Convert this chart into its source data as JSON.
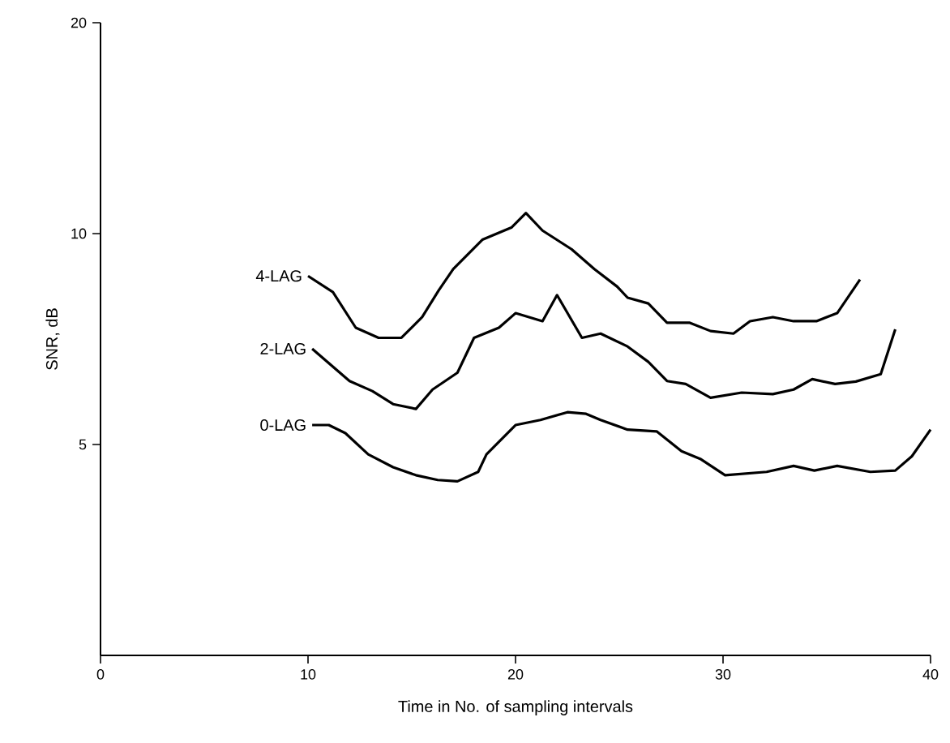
{
  "chart_data": {
    "type": "line",
    "xlabel": "Time in No. of sampling intervals",
    "ylabel": "SNR, dB",
    "log": "y",
    "xlim": [
      0,
      40
    ],
    "ylim": [
      2.5,
      20
    ],
    "xticks": [
      0,
      10,
      20,
      30,
      40
    ],
    "yticks": [
      5,
      10,
      20
    ],
    "grid": false,
    "legend": false,
    "marker": "none",
    "line_style": "solid",
    "series": [
      {
        "name": "4-LAG",
        "color": "#000000",
        "x": [
          10,
          11.2,
          12.3,
          13.4,
          14.5,
          15.5,
          16.3,
          17.0,
          18.4,
          19.8,
          20.5,
          21.3,
          22.7,
          23.8,
          24.9,
          25.4,
          26.4,
          27.3,
          28.4,
          29.4,
          30.5,
          31.3,
          32.4,
          33.4,
          34.5,
          35.5,
          36.6
        ],
        "values": [
          8.7,
          8.25,
          7.34,
          7.1,
          7.1,
          7.6,
          8.3,
          8.9,
          9.8,
          10.2,
          10.7,
          10.1,
          9.5,
          8.9,
          8.4,
          8.1,
          7.95,
          7.46,
          7.46,
          7.26,
          7.2,
          7.5,
          7.6,
          7.5,
          7.5,
          7.7,
          8.6
        ]
      },
      {
        "name": "2-LAG",
        "color": "#000000",
        "x": [
          10.2,
          12.0,
          13.1,
          14.1,
          15.2,
          16.0,
          17.2,
          18.0,
          19.2,
          20.0,
          21.3,
          22.0,
          23.2,
          24.1,
          25.4,
          26.4,
          27.3,
          28.2,
          29.4,
          30.9,
          32.4,
          33.4,
          34.3,
          35.4,
          36.4,
          37.6,
          38.3
        ],
        "values": [
          6.85,
          6.16,
          5.96,
          5.71,
          5.62,
          5.99,
          6.33,
          7.1,
          7.34,
          7.7,
          7.5,
          8.17,
          7.1,
          7.2,
          6.9,
          6.56,
          6.16,
          6.1,
          5.83,
          5.93,
          5.9,
          5.99,
          6.2,
          6.1,
          6.15,
          6.3,
          7.3
        ]
      },
      {
        "name": "0-LAG",
        "color": "#000000",
        "x": [
          10.2,
          11.0,
          11.8,
          12.9,
          14.1,
          15.2,
          16.25,
          17.2,
          18.2,
          18.6,
          20.0,
          21.2,
          22.5,
          23.4,
          24.1,
          25.4,
          26.8,
          28.0,
          28.9,
          30.1,
          32.1,
          33.4,
          34.4,
          35.5,
          37.1,
          38.3,
          39.1,
          40.0
        ],
        "values": [
          5.33,
          5.33,
          5.19,
          4.84,
          4.64,
          4.52,
          4.45,
          4.43,
          4.57,
          4.84,
          5.33,
          5.42,
          5.56,
          5.53,
          5.42,
          5.25,
          5.22,
          4.89,
          4.77,
          4.52,
          4.57,
          4.66,
          4.59,
          4.66,
          4.57,
          4.59,
          4.81,
          5.25
        ]
      }
    ]
  }
}
